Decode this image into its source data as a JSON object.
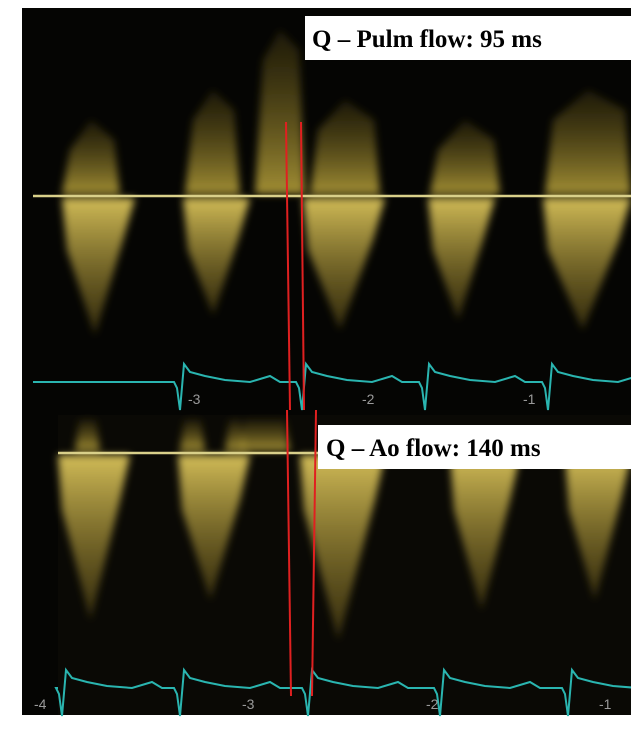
{
  "panels": [
    {
      "label": "Q – Pulm flow: 95 ms",
      "time_labels": [
        "-3",
        "-2",
        "-1"
      ]
    },
    {
      "label": "Q – Ao flow: 140 ms",
      "time_labels": [
        "-4",
        "-3",
        "-2",
        "-1"
      ]
    }
  ]
}
